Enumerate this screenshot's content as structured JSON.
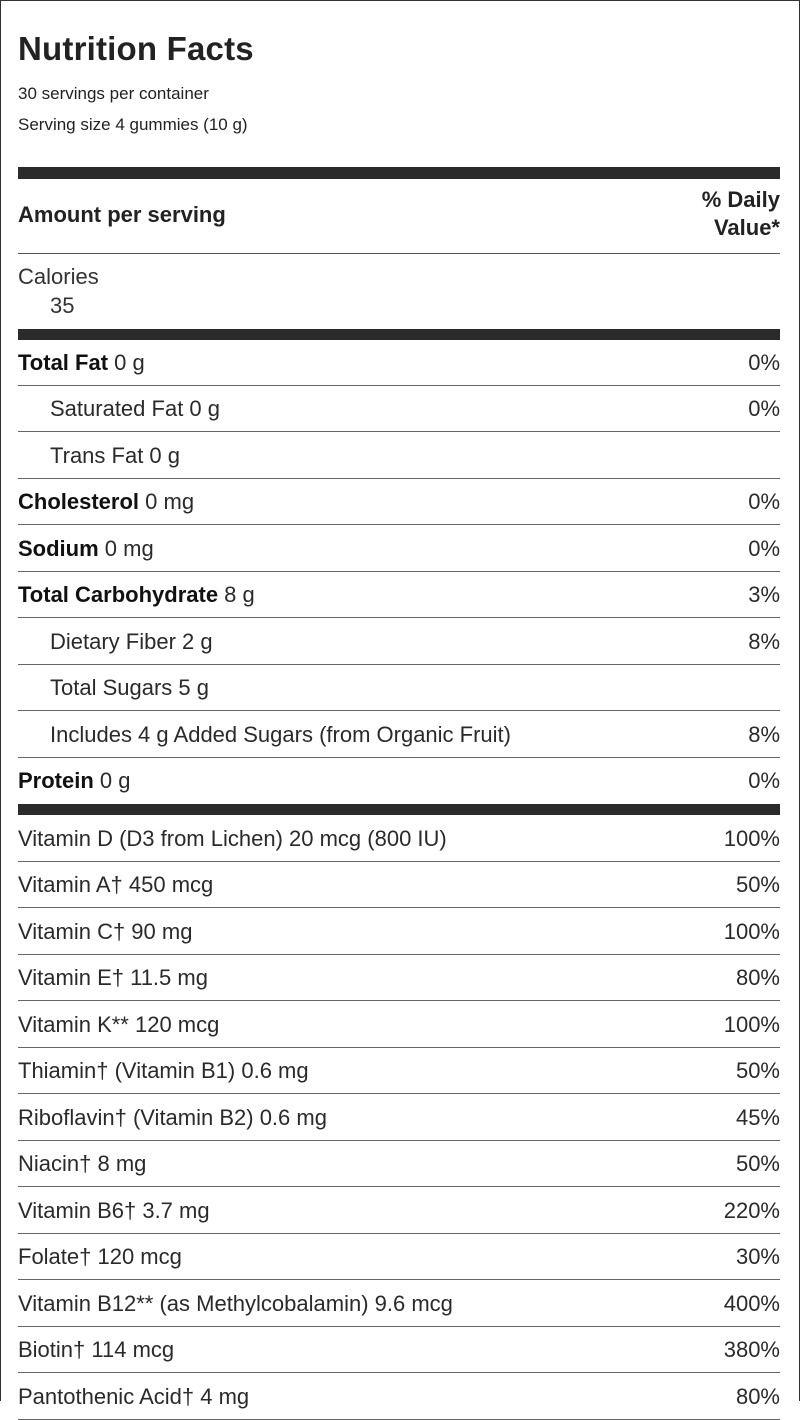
{
  "header": {
    "title": "Nutrition Facts",
    "servings": "30 servings per container",
    "serving_size": "Serving size 4 gummies (10 g)",
    "amount_per_serving": "Amount per serving",
    "daily_value_line1": "% Daily",
    "daily_value_line2": "Value*"
  },
  "calories": {
    "label": "Calories",
    "value": "35"
  },
  "macros": [
    {
      "name": "Total Fat",
      "amount": " 0 g",
      "dv": "0%"
    },
    {
      "name": "Saturated Fat 0 g",
      "dv": "0%"
    },
    {
      "name": "Trans Fat 0 g",
      "dv": ""
    },
    {
      "name": "Cholesterol",
      "amount": " 0 mg",
      "dv": "0%"
    },
    {
      "name": "Sodium",
      "amount": " 0 mg",
      "dv": "0%"
    },
    {
      "name": "Total Carbohydrate",
      "amount": " 8 g",
      "dv": "3%"
    },
    {
      "name": "Dietary Fiber 2 g",
      "dv": "8%"
    },
    {
      "name": "Total Sugars 5 g",
      "dv": ""
    },
    {
      "name": "Includes 4 g Added Sugars (from Organic Fruit)",
      "dv": "8%"
    },
    {
      "name": "Protein",
      "amount": " 0 g",
      "dv": "0%"
    }
  ],
  "vitamins": [
    {
      "name": "Vitamin D (D3 from Lichen) 20 mcg (800 IU)",
      "dv": "100%"
    },
    {
      "name": "Vitamin A† 450 mcg",
      "dv": "50%"
    },
    {
      "name": "Vitamin C† 90 mg",
      "dv": "100%"
    },
    {
      "name": "Vitamin E† 11.5 mg",
      "dv": "80%"
    },
    {
      "name": "Vitamin K** 120 mcg",
      "dv": "100%"
    },
    {
      "name": "Thiamin† (Vitamin B1) 0.6 mg",
      "dv": "50%"
    },
    {
      "name": "Riboflavin† (Vitamin B2) 0.6 mg",
      "dv": "45%"
    },
    {
      "name": "Niacin† 8 mg",
      "dv": "50%"
    },
    {
      "name": "Vitamin B6† 3.7 mg",
      "dv": "220%"
    },
    {
      "name": "Folate† 120 mcg",
      "dv": "30%"
    },
    {
      "name": "Vitamin B12** (as Methylcobalamin) 9.6 mcg",
      "dv": "400%"
    },
    {
      "name": "Biotin† 114 mcg",
      "dv": "380%"
    },
    {
      "name": "Pantothenic Acid† 4 mg",
      "dv": "80%"
    }
  ]
}
